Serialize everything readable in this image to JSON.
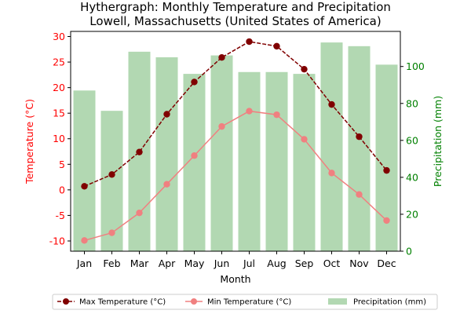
{
  "chart_data": {
    "type": "bar+line",
    "title": "Hythergraph: Monthly Temperature and Precipitation",
    "subtitle": "Lowell, Massachusetts (United States of America)",
    "xlabel": "Month",
    "ylabel_left": "Temperature (°C)",
    "ylabel_right": "Precipitation (mm)",
    "categories": [
      "Jan",
      "Feb",
      "Mar",
      "Apr",
      "May",
      "Jun",
      "Jul",
      "Aug",
      "Sep",
      "Oct",
      "Nov",
      "Dec"
    ],
    "ylim_left": [
      -12,
      31
    ],
    "ylim_right": [
      0,
      119
    ],
    "yticks_left": [
      -10,
      -5,
      0,
      5,
      10,
      15,
      20,
      25,
      30
    ],
    "yticks_right": [
      0,
      20,
      40,
      60,
      80,
      100
    ],
    "left_axis_color": "#ff0000",
    "right_axis_color": "#008000",
    "series": [
      {
        "name": "Max Temperature (°C)",
        "type": "line",
        "axis": "left",
        "color": "#800000",
        "values": [
          0.7,
          3.0,
          7.4,
          14.8,
          21.1,
          25.9,
          29.0,
          28.1,
          23.6,
          16.7,
          10.4,
          3.8
        ]
      },
      {
        "name": "Min Temperature (°C)",
        "type": "line",
        "axis": "left",
        "color": "#f08080",
        "values": [
          -9.9,
          -8.4,
          -4.5,
          1.1,
          6.7,
          12.4,
          15.4,
          14.7,
          9.9,
          3.3,
          -0.9,
          -6.0
        ]
      },
      {
        "name": "Precipitation (mm)",
        "type": "bar",
        "axis": "right",
        "color": "#b2d8b2",
        "values": [
          87,
          76,
          108,
          105,
          96,
          106,
          97,
          97,
          96,
          113,
          111,
          101
        ]
      }
    ],
    "legend": {
      "position": "bottom",
      "items": [
        "Max Temperature (°C)",
        "Min Temperature (°C)",
        "Precipitation (mm)"
      ]
    }
  }
}
